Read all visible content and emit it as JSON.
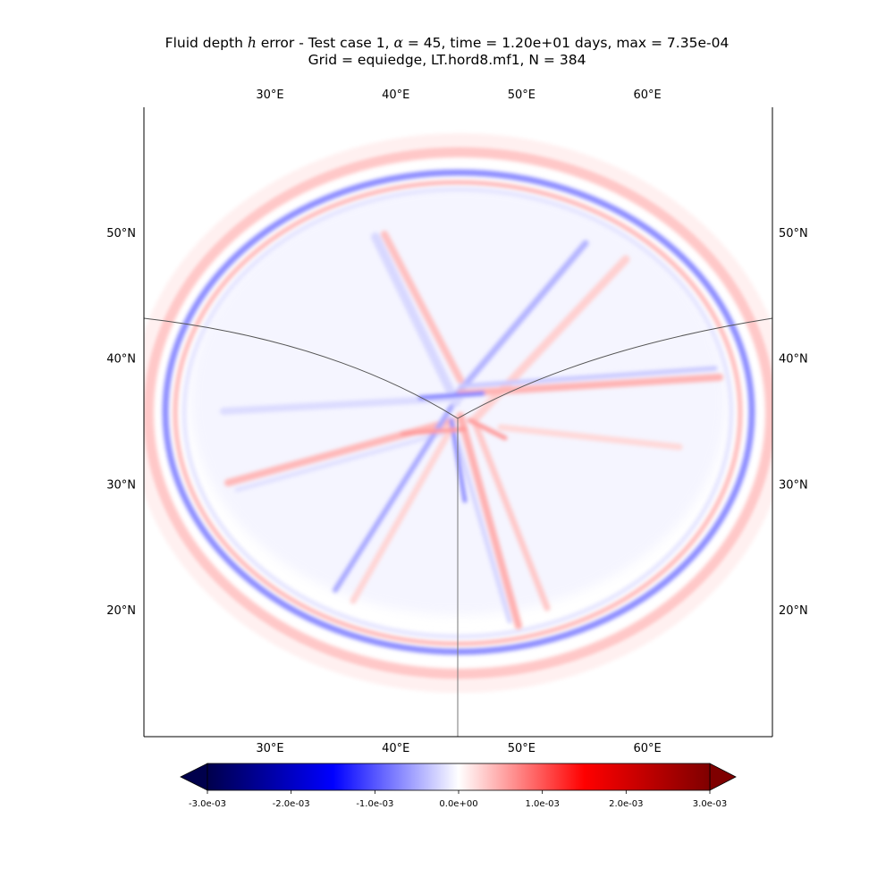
{
  "title": {
    "line1_prefix": "Fluid depth ",
    "line1_var": "h",
    "line1_mid": " error - Test case 1, ",
    "line1_greek": "α",
    "line1_suffix": " = 45, time = 1.20e+01 days, max = 7.35e-04",
    "line2": "Grid = equiedge, LT.hord8.mf1, N = 384"
  },
  "map": {
    "lon_labels": [
      "30°E",
      "40°E",
      "50°E",
      "60°E"
    ],
    "lat_labels": [
      "50°N",
      "40°N",
      "30°N",
      "20°N"
    ],
    "lon_values": [
      30,
      40,
      50,
      60
    ],
    "lat_values": [
      50,
      40,
      30,
      20
    ],
    "colormap": "seismic",
    "colors": {
      "negative_max": "#00004c",
      "negative": "#0000ff",
      "zero": "#ffffff",
      "positive": "#ff0000",
      "positive_max": "#7f0000"
    }
  },
  "colorbar": {
    "range": [
      -0.003,
      0.003
    ],
    "extend": "both",
    "tick_values": [
      -0.003,
      -0.002,
      -0.001,
      0,
      0.001,
      0.002,
      0.003
    ],
    "tick_labels": [
      "-3.0e-03",
      "-2.0e-03",
      "-1.0e-03",
      "0.0e+00",
      "1.0e-03",
      "2.0e-03",
      "3.0e-03"
    ]
  }
}
